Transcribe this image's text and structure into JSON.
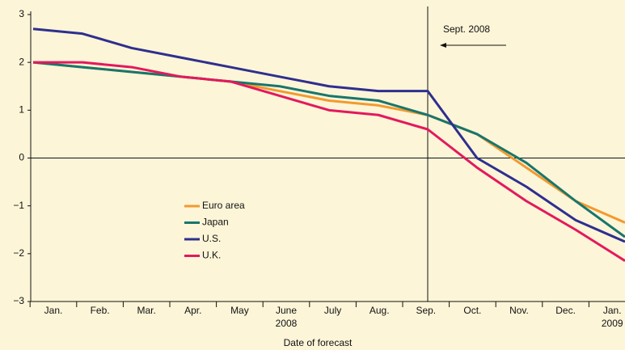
{
  "chart_data": {
    "type": "line",
    "xlabel": "Date of forecast",
    "annotation": "Sept. 2008",
    "categories": [
      "Jan.",
      "Feb.",
      "Mar.",
      "Apr.",
      "May",
      "June",
      "July",
      "Aug.",
      "Sep.",
      "Oct.",
      "Nov.",
      "Dec.",
      "Jan."
    ],
    "category_sublabels": [
      null,
      null,
      null,
      null,
      null,
      "2008",
      null,
      null,
      null,
      null,
      null,
      null,
      "2009"
    ],
    "series": [
      {
        "name": "Euro area",
        "color": "#f29a2e",
        "values": [
          2.0,
          1.9,
          1.8,
          1.7,
          1.6,
          1.4,
          1.2,
          1.1,
          0.9,
          0.5,
          -0.2,
          -0.9,
          -1.35
        ]
      },
      {
        "name": "Japan",
        "color": "#18766c",
        "values": [
          2.0,
          1.9,
          1.8,
          1.7,
          1.6,
          1.5,
          1.3,
          1.2,
          0.9,
          0.5,
          -0.1,
          -0.9,
          -1.65
        ]
      },
      {
        "name": "U.S.",
        "color": "#2e2f8f",
        "values": [
          2.7,
          2.6,
          2.3,
          2.1,
          1.9,
          1.7,
          1.5,
          1.4,
          1.4,
          0.0,
          -0.6,
          -1.3,
          -1.75
        ]
      },
      {
        "name": "U.K.",
        "color": "#e3195d",
        "values": [
          2.0,
          2.0,
          1.9,
          1.7,
          1.6,
          1.3,
          1.0,
          0.9,
          0.6,
          -0.2,
          -0.9,
          -1.5,
          -2.15
        ]
      }
    ],
    "ylim": [
      -3,
      3
    ],
    "yticks": [
      3,
      2,
      1,
      0,
      {
        "value": -1,
        "label": "−1"
      },
      {
        "value": -2,
        "label": "−2"
      },
      {
        "value": -3,
        "label": "−3"
      }
    ]
  }
}
